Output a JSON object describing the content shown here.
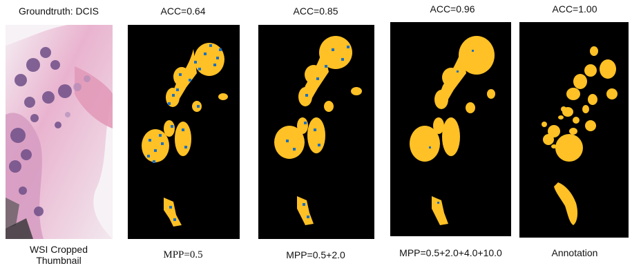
{
  "colors": {
    "background": "#000000",
    "predicted_region": "#FFC125",
    "error_pixels": "#1E6FC0",
    "tissue_pink": "#E8A6C6",
    "tissue_purple": "#7E5C94"
  },
  "panels": [
    {
      "title": "Groundtruth: DCIS",
      "caption_line1": "WSI Cropped",
      "caption_line2": "Thumbnail",
      "kind": "thumbnail"
    },
    {
      "title": "ACC=0.64",
      "caption_line1": "MPP=0.5",
      "caption_line2": "",
      "kind": "mask",
      "accuracy": 0.64
    },
    {
      "title": "ACC=0.85",
      "caption_line1": "MPP=0.5+2.0",
      "caption_line2": "",
      "kind": "mask",
      "accuracy": 0.85
    },
    {
      "title": "ACC=0.96",
      "caption_line1": "MPP=0.5+2.0+4.0+10.0",
      "caption_line2": "",
      "kind": "mask",
      "accuracy": 0.96
    },
    {
      "title": "ACC=1.00",
      "caption_line1": "Annotation",
      "caption_line2": "",
      "kind": "annotation",
      "accuracy": 1.0
    }
  ]
}
